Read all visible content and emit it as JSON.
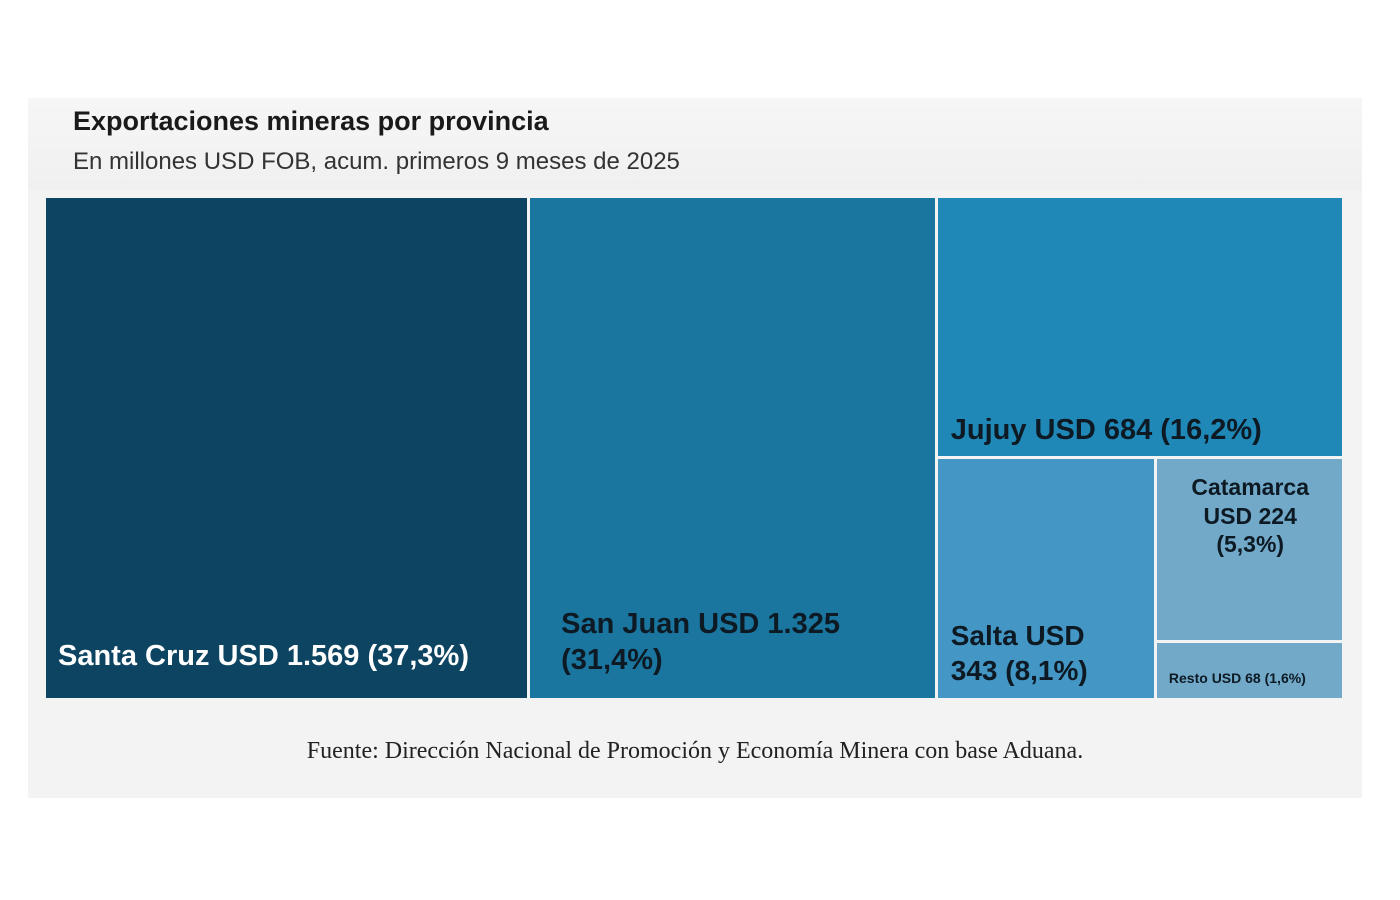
{
  "chart_data": {
    "type": "treemap",
    "title": "Exportaciones mineras por provincia",
    "subtitle": "En millones USD FOB, acum. primeros 9 meses de 2025",
    "unit": "millones USD FOB",
    "items": [
      {
        "name": "Santa Cruz",
        "value": 1569,
        "share": 37.3,
        "label": "Santa Cruz USD 1.569 (37,3%)",
        "color": "#0d4461"
      },
      {
        "name": "San Juan",
        "value": 1325,
        "share": 31.4,
        "label": "San Juan USD 1.325 (31,4%)",
        "color": "#1a759f"
      },
      {
        "name": "Jujuy",
        "value": 684,
        "share": 16.2,
        "label": "Jujuy USD 684 (16,2%)",
        "color": "#1f88b7"
      },
      {
        "name": "Salta",
        "value": 343,
        "share": 8.1,
        "label": "Salta USD 343 (8,1%)",
        "color": "#4497c5"
      },
      {
        "name": "Catamarca",
        "value": 224,
        "share": 5.3,
        "label": "Catamarca USD 224 (5,3%)",
        "color": "#72a9c9"
      },
      {
        "name": "Resto",
        "value": 68,
        "share": 1.6,
        "label": "Resto USD 68 (1,6%)",
        "color": "#72a9c9"
      }
    ],
    "source": "Fuente: Dirección Nacional de Promoción y Economía Minera con base Aduana."
  }
}
